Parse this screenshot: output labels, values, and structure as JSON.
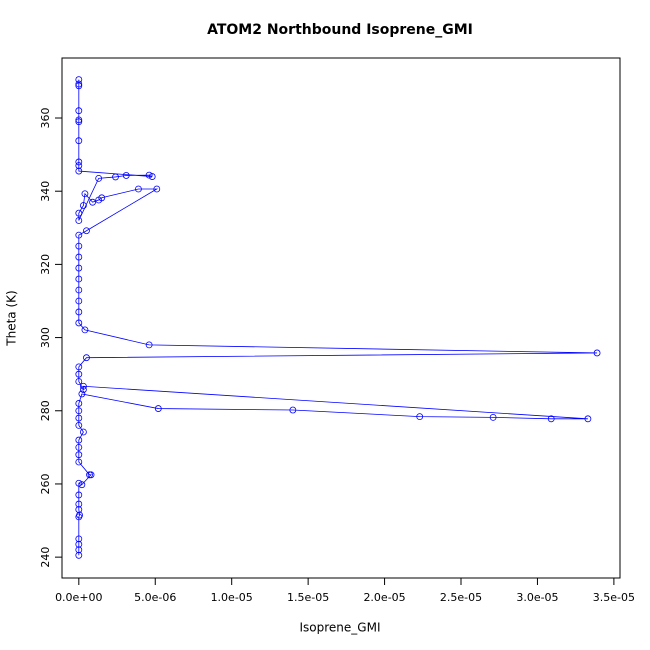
{
  "chart_data": {
    "type": "line",
    "marker": "circle",
    "title": "ATOM2 Northbound Isoprene_GMI",
    "xlabel": "Isoprene_GMI",
    "ylabel": "Theta (K)",
    "color": "#0000ff",
    "x": [
      0,
      0,
      0,
      0,
      0,
      5e-08,
      0,
      0,
      0,
      0,
      2e-07,
      8e-07,
      7e-07,
      0,
      0,
      0,
      0,
      3e-07,
      0,
      0,
      0,
      0,
      2e-07,
      5.2e-06,
      1.4e-05,
      2.23e-05,
      2.71e-05,
      3.09e-05,
      3.33e-05,
      3e-07,
      3e-07,
      0,
      0,
      0,
      5e-07,
      3.39e-05,
      4.6e-06,
      4e-07,
      0,
      0,
      0,
      0,
      0,
      0,
      0,
      0,
      0,
      5e-07,
      5.1e-06,
      3.9e-06,
      1.5e-06,
      1.3e-06,
      9e-07,
      4e-07,
      3e-07,
      0,
      0,
      1.3e-06,
      2.4e-06,
      3.1e-06,
      4.6e-06,
      4.8e-06,
      0,
      0,
      0,
      0,
      0,
      0,
      0,
      0,
      0,
      0
    ],
    "values": [
      240.5,
      242,
      243.5,
      245,
      251,
      251.5,
      253,
      254.5,
      257,
      260.2,
      259.8,
      262.5,
      262.5,
      266,
      268,
      270,
      272,
      274.2,
      276,
      278,
      280,
      282,
      284.6,
      280.6,
      280.2,
      278.4,
      278.2,
      277.8,
      277.8,
      286.7,
      285.8,
      288,
      290,
      292,
      294.5,
      295.8,
      298.0,
      302.1,
      304,
      307,
      310,
      313,
      316,
      319,
      322,
      325,
      328,
      329.2,
      340.6,
      340.6,
      338.2,
      337.6,
      337.0,
      339.3,
      336.1,
      334,
      332,
      343.5,
      343.9,
      344.3,
      344.4,
      344.0,
      345.5,
      347,
      348,
      353.8,
      359,
      359.5,
      362,
      368.8,
      369.3,
      370.5
    ],
    "xlim": [
      -1.1e-06,
      3.54e-05
    ],
    "ylim": [
      234.3,
      376.4
    ],
    "xticks": [
      {
        "value": 0,
        "label": "0.0e+00"
      },
      {
        "value": 5e-06,
        "label": "5.0e-06"
      },
      {
        "value": 1e-05,
        "label": "1.0e-05"
      },
      {
        "value": 1.5e-05,
        "label": "1.5e-05"
      },
      {
        "value": 2e-05,
        "label": "2.0e-05"
      },
      {
        "value": 2.5e-05,
        "label": "2.5e-05"
      },
      {
        "value": 3e-05,
        "label": "3.0e-05"
      },
      {
        "value": 3.5e-05,
        "label": "3.5e-05"
      }
    ],
    "yticks": [
      240,
      260,
      280,
      300,
      320,
      340,
      360
    ]
  }
}
